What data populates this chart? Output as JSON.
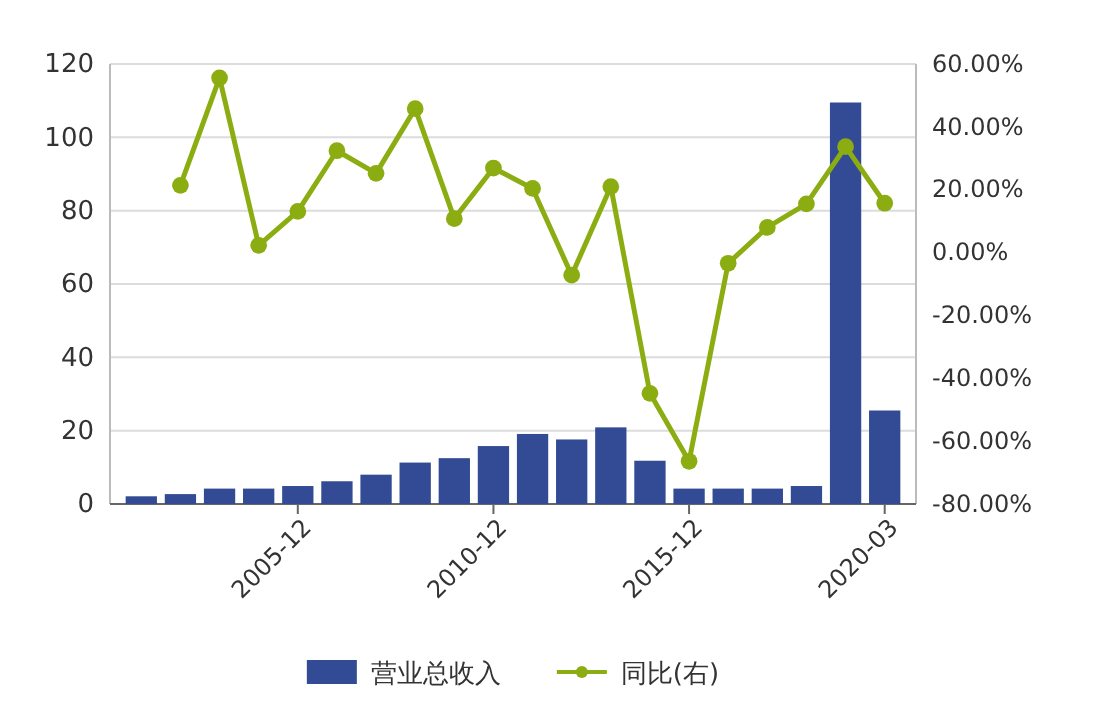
{
  "chart_data": {
    "type": "bar",
    "categories": [
      null,
      null,
      null,
      null,
      "2005-12",
      null,
      null,
      null,
      null,
      "2010-12",
      null,
      null,
      null,
      null,
      "2015-12",
      null,
      null,
      null,
      null,
      "2020-03"
    ],
    "series": [
      {
        "name": "营业总收入",
        "color": "#334a94",
        "values": [
          2.1,
          2.7,
          4.2,
          4.2,
          4.9,
          6.2,
          8.0,
          11.3,
          12.5,
          15.8,
          19.1,
          17.6,
          20.9,
          11.8,
          4.2,
          4.2,
          4.2,
          4.9,
          109.5,
          25.5
        ]
      },
      {
        "name": "同比(右)",
        "type": "line",
        "axis": "y2",
        "color": "#8cad12",
        "marker": "circle",
        "values": [
          null,
          21.4,
          55.6,
          2.3,
          13.1,
          32.4,
          25.2,
          45.8,
          10.8,
          26.9,
          20.4,
          -7.2,
          21.0,
          -44.8,
          -66.4,
          -3.4,
          8.0,
          15.5,
          33.7,
          15.7
        ]
      }
    ],
    "ylim": [
      0,
      120
    ],
    "yticks": [
      0,
      20,
      40,
      60,
      80,
      100,
      120
    ],
    "y2lim": [
      -80,
      60
    ],
    "y2ticks": [
      {
        "value": -80,
        "label": "-80.00%"
      },
      {
        "value": -60,
        "label": "-60.00%"
      },
      {
        "value": -40,
        "label": "-40.00%"
      },
      {
        "value": -20,
        "label": "-20.00%"
      },
      {
        "value": 0,
        "label": "0.00%"
      },
      {
        "value": 20,
        "label": "20.00%"
      },
      {
        "value": 40,
        "label": "40.00%"
      },
      {
        "value": 60,
        "label": "60.00%"
      }
    ],
    "grid": "y",
    "legend": "bottom"
  }
}
